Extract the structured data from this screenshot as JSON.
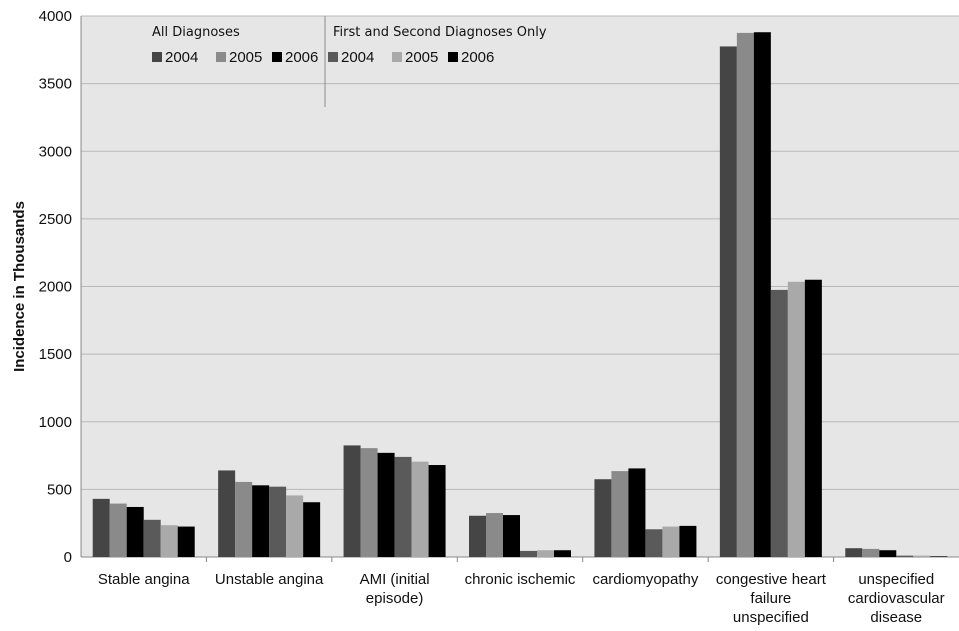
{
  "chart_data": {
    "type": "bar",
    "ylabel": "Incidence in Thousands",
    "xlabel": "",
    "ylim": [
      0,
      4000
    ],
    "yticks": [
      0,
      500,
      1000,
      1500,
      2000,
      2500,
      3000,
      3500,
      4000
    ],
    "grid": true,
    "legend_position": "top-left",
    "legend_groups": [
      {
        "title": "All Diagnoses",
        "labels": [
          "2004",
          "2005",
          "2006"
        ]
      },
      {
        "title": "First and Second Diagnoses Only",
        "labels": [
          "2004",
          "2005",
          "2006"
        ]
      }
    ],
    "categories": [
      [
        "Stable angina"
      ],
      [
        "Unstable angina"
      ],
      [
        "AMI (initial",
        "episode)"
      ],
      [
        "chronic ischemic"
      ],
      [
        "cardiomyopathy"
      ],
      [
        "congestive heart",
        "failure",
        "unspecified"
      ],
      [
        "unspecified",
        "cardiovascular",
        "disease"
      ]
    ],
    "series": [
      {
        "group": "All Diagnoses",
        "name": "2004",
        "color": "#454545",
        "values": [
          430,
          640,
          825,
          305,
          575,
          3775,
          65
        ]
      },
      {
        "group": "All Diagnoses",
        "name": "2005",
        "color": "#8a8a8a",
        "values": [
          395,
          555,
          805,
          325,
          635,
          3875,
          60
        ]
      },
      {
        "group": "All Diagnoses",
        "name": "2006",
        "color": "#000000",
        "values": [
          370,
          530,
          770,
          310,
          655,
          3880,
          50
        ]
      },
      {
        "group": "First and Second Diagnoses Only",
        "name": "2004",
        "color": "#5a5a5a",
        "values": [
          275,
          520,
          740,
          45,
          205,
          1975,
          10
        ]
      },
      {
        "group": "First and Second Diagnoses Only",
        "name": "2005",
        "color": "#a9a9a9",
        "values": [
          235,
          455,
          705,
          50,
          225,
          2035,
          10
        ]
      },
      {
        "group": "First and Second Diagnoses Only",
        "name": "2006",
        "color": "#000000",
        "values": [
          225,
          405,
          680,
          50,
          230,
          2050,
          5
        ]
      }
    ],
    "colors": {
      "plot_background": "#e6e6e6",
      "gridline": "#b8b8b8"
    }
  }
}
